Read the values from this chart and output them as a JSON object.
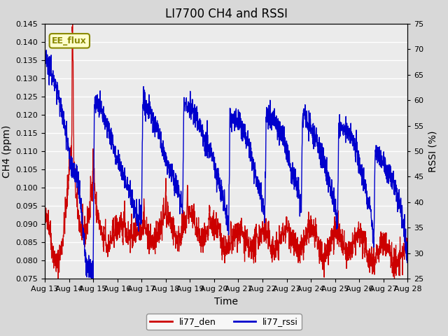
{
  "title": "LI7700 CH4 and RSSI",
  "xlabel": "Time",
  "ylabel_left": "CH4 (ppm)",
  "ylabel_right": "RSSI (%)",
  "ylim_left": [
    0.075,
    0.145
  ],
  "ylim_right": [
    25,
    75
  ],
  "yticks_left": [
    0.075,
    0.08,
    0.085,
    0.09,
    0.095,
    0.1,
    0.105,
    0.11,
    0.115,
    0.12,
    0.125,
    0.13,
    0.135,
    0.14,
    0.145
  ],
  "yticks_right": [
    25,
    30,
    35,
    40,
    45,
    50,
    55,
    60,
    65,
    70,
    75
  ],
  "xtick_labels": [
    "Aug 13",
    "Aug 14",
    "Aug 15",
    "Aug 16",
    "Aug 17",
    "Aug 18",
    "Aug 19",
    "Aug 20",
    "Aug 21",
    "Aug 22",
    "Aug 23",
    "Aug 24",
    "Aug 25",
    "Aug 26",
    "Aug 27",
    "Aug 28"
  ],
  "legend_labels": [
    "li77_den",
    "li77_rssi"
  ],
  "legend_colors": [
    "#cc0000",
    "#0000cc"
  ],
  "line_colors": [
    "#cc0000",
    "#0000cc"
  ],
  "annotation_text": "EE_flux",
  "annotation_color": "#888800",
  "annotation_bg": "#ffffcc",
  "background_color": "#d8d8d8",
  "plot_bg_color": "#ebebeb",
  "grid_color": "#ffffff",
  "title_fontsize": 12,
  "label_fontsize": 10,
  "tick_fontsize": 8,
  "n_days": 15,
  "n_points": 2000,
  "rssi_ctrl_t": [
    0,
    0.05,
    0.15,
    0.3,
    0.5,
    0.7,
    0.9,
    1.05,
    1.1,
    1.2,
    1.4,
    1.7,
    1.85,
    2.0,
    2.05,
    2.3,
    2.6,
    2.9,
    3.2,
    3.5,
    3.8,
    4.0,
    4.05,
    4.3,
    4.6,
    4.9,
    5.2,
    5.5,
    5.7,
    5.75,
    6.1,
    6.5,
    6.9,
    7.2,
    7.5,
    7.6,
    7.65,
    8.0,
    8.4,
    8.7,
    9.0,
    9.1,
    9.15,
    9.5,
    9.9,
    10.2,
    10.5,
    10.6,
    10.65,
    11.0,
    11.4,
    11.7,
    12.0,
    12.1,
    12.15,
    12.5,
    12.9,
    13.2,
    13.5,
    13.6,
    13.65,
    14.0,
    14.4,
    14.7,
    15.0
  ],
  "rssi_ctrl_v": [
    70,
    69,
    67,
    65,
    62,
    58,
    53,
    48,
    47,
    46,
    44,
    28,
    27,
    27,
    60,
    58,
    55,
    50,
    46,
    42,
    37,
    37,
    60,
    58,
    55,
    50,
    46,
    42,
    39,
    60,
    58,
    54,
    49,
    44,
    38,
    35,
    57,
    56,
    52,
    46,
    40,
    37,
    57,
    56,
    52,
    46,
    42,
    38,
    57,
    55,
    50,
    45,
    39,
    35,
    55,
    54,
    50,
    44,
    38,
    32,
    50,
    48,
    44,
    39,
    30
  ],
  "ch4_ctrl_t": [
    0,
    0.1,
    0.2,
    0.3,
    0.5,
    0.7,
    0.9,
    1.0,
    1.1,
    1.12,
    1.13,
    1.15,
    1.17,
    1.2,
    1.3,
    1.4,
    1.5,
    1.6,
    1.7,
    1.8,
    1.9,
    2.0,
    2.1,
    2.2,
    2.3,
    2.5,
    2.7,
    3.0,
    3.5,
    4.0,
    4.5,
    5.0,
    5.5,
    6.0,
    6.5,
    7.0,
    7.5,
    8.0,
    8.5,
    9.0,
    9.5,
    10.0,
    10.5,
    11.0,
    11.5,
    12.0,
    12.5,
    13.0,
    13.5,
    14.0,
    14.5,
    15.0
  ],
  "ch4_ctrl_v": [
    0.087,
    0.09,
    0.088,
    0.084,
    0.082,
    0.085,
    0.093,
    0.102,
    0.108,
    0.112,
    0.141,
    0.143,
    0.13,
    0.105,
    0.098,
    0.094,
    0.092,
    0.09,
    0.089,
    0.092,
    0.09,
    0.105,
    0.093,
    0.091,
    0.089,
    0.087,
    0.086,
    0.086,
    0.09,
    0.086,
    0.088,
    0.09,
    0.089,
    0.09,
    0.088,
    0.087,
    0.086,
    0.085,
    0.086,
    0.085,
    0.086,
    0.086,
    0.085,
    0.086,
    0.084,
    0.085,
    0.085,
    0.084,
    0.083,
    0.082,
    0.082,
    0.081
  ]
}
